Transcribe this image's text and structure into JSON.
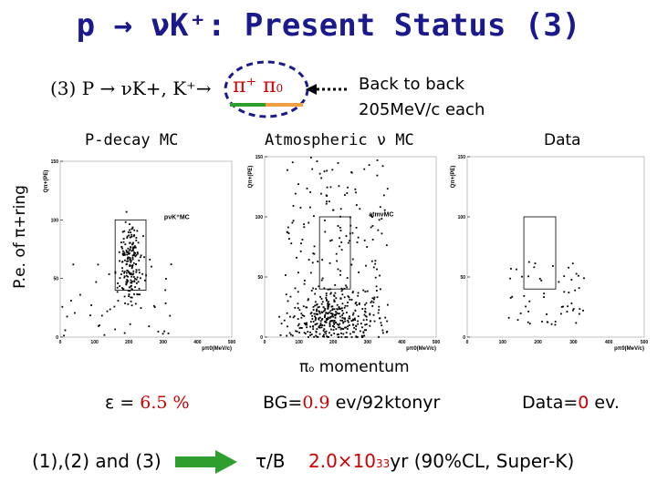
{
  "slide": {
    "title": "p → νK⁺: Present Status (3)",
    "decay_mode": "(3) P → νK+,  K⁺→",
    "pi_plus": "π⁺",
    "pi_zero": "π",
    "pi_zero_sub": "0",
    "back_to_back": "Back to back",
    "momentum_each": "205MeV/c each",
    "y_axis_label": "P.e. of π+ring",
    "x_axis_label": "π",
    "x_axis_label_sub": "o",
    "x_axis_label_rest": " momentum",
    "efficiency_label": "ε = ",
    "efficiency_value": "6.5 %",
    "bg_label": "BG=",
    "bg_value": "0.9",
    "bg_unit": " ev/92ktonyr",
    "data_label": "Data=",
    "data_value": "0",
    "data_unit": " ev.",
    "combined_label": "(1),(2) and (3)",
    "lifetime_symbol": "τ/B",
    "lifetime_value": "2.0×10",
    "lifetime_exp": "33",
    "lifetime_rest": "yr (90%CL, Super-K)"
  },
  "panels": [
    {
      "heading": "P-decay MC",
      "inner_label": "pνK⁺MC"
    },
    {
      "heading": "Atmospheric ν  MC",
      "inner_label": "atmνMC"
    },
    {
      "heading": "Data",
      "inner_label": ""
    }
  ],
  "axes": {
    "y_title": "Qπ+(PE)",
    "x_title": "pπ0(MeV/c)",
    "y_ticks": [
      "150",
      "100",
      "50",
      "0"
    ],
    "x_ticks": [
      "0",
      "100",
      "200",
      "300",
      "400",
      "500"
    ]
  },
  "colors": {
    "title": "#1a1a8c",
    "red": "#cc0000",
    "green": "#2e9e2e",
    "orange": "#f0a040",
    "navy": "#1a1a8c"
  }
}
